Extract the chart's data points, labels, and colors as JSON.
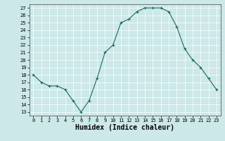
{
  "x": [
    0,
    1,
    2,
    3,
    4,
    5,
    6,
    7,
    8,
    9,
    10,
    11,
    12,
    13,
    14,
    15,
    16,
    17,
    18,
    19,
    20,
    21,
    22,
    23
  ],
  "y": [
    18,
    17,
    16.5,
    16.5,
    16,
    14.5,
    13,
    14.5,
    17.5,
    21,
    22,
    25,
    25.5,
    26.5,
    27,
    27,
    27,
    26.5,
    24.5,
    21.5,
    20,
    19,
    17.5,
    16
  ],
  "xlabel": "Humidex (Indice chaleur)",
  "xlim": [
    -0.5,
    23.5
  ],
  "ylim": [
    12.5,
    27.5
  ],
  "yticks": [
    13,
    14,
    15,
    16,
    17,
    18,
    19,
    20,
    21,
    22,
    23,
    24,
    25,
    26,
    27
  ],
  "xticks": [
    0,
    1,
    2,
    3,
    4,
    5,
    6,
    7,
    8,
    9,
    10,
    11,
    12,
    13,
    14,
    15,
    16,
    17,
    18,
    19,
    20,
    21,
    22,
    23
  ],
  "line_color": "#1a6b5a",
  "marker": "+",
  "marker_size": 3,
  "bg_color": "#cce8e8",
  "grid_color": "#ffffff",
  "axis_fontsize": 6,
  "tick_fontsize": 5,
  "xlabel_fontsize": 7
}
